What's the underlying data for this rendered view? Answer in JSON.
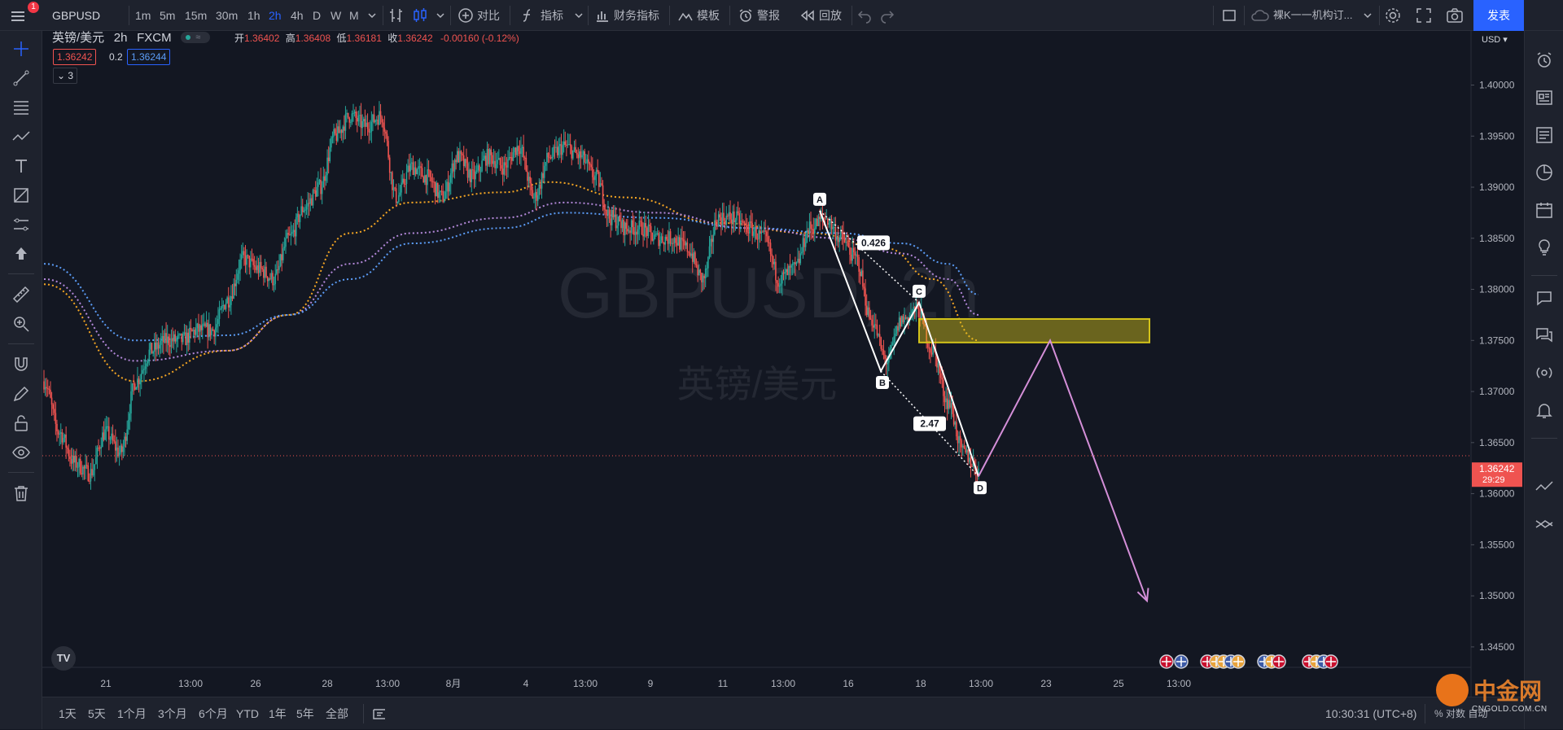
{
  "toolbar": {
    "notification_count": "1",
    "symbol": "GBPUSD",
    "intervals": [
      "1m",
      "5m",
      "15m",
      "30m",
      "1h",
      "2h",
      "4h",
      "D",
      "W",
      "M"
    ],
    "active_interval": "2h",
    "compare_label": "对比",
    "indicators_label": "指标",
    "financials_label": "财务指标",
    "templates_label": "模板",
    "alert_label": "警报",
    "replay_label": "回放",
    "layout_name": "裸K一一机构订...",
    "publish_label": "发表"
  },
  "legend": {
    "title": "英镑/美元",
    "interval": "2h",
    "source": "FXCM",
    "open_label": "开",
    "open": "1.36402",
    "high_label": "高",
    "high": "1.36408",
    "low_label": "低",
    "low": "1.36181",
    "close_label": "收",
    "close": "1.36242",
    "change": "-0.00160 (-0.12%)",
    "bid": "1.36242",
    "spread": "0.2",
    "ask": "1.36244",
    "collapsed_count": "3"
  },
  "watermark": {
    "line1": "GBPUSD, 2h",
    "line2": "英镑/美元"
  },
  "price_axis": {
    "currency": "USD",
    "ticks": [
      "1.40000",
      "1.39500",
      "1.39000",
      "1.38500",
      "1.38000",
      "1.37500",
      "1.37000",
      "1.36500",
      "1.36000",
      "1.35500",
      "1.35000",
      "1.34500"
    ],
    "current_price": "1.36242",
    "countdown": "29:29"
  },
  "time_axis": {
    "ticks": [
      "21",
      "13:00",
      "26",
      "28",
      "13:00",
      "8月",
      "4",
      "13:00",
      "9",
      "11",
      "13:00",
      "16",
      "18",
      "13:00",
      "23",
      "25",
      "13:00"
    ]
  },
  "pattern": {
    "points": [
      "A",
      "B",
      "C",
      "D"
    ],
    "ratio_bc": "0.426",
    "ratio_cd": "2.47"
  },
  "bottom": {
    "ranges": [
      "1天",
      "5天",
      "1个月",
      "3个月",
      "6个月",
      "YTD",
      "1年",
      "5年",
      "全部"
    ],
    "clock": "10:30:31 (UTC+8)",
    "right_labels": "% 对数 自动"
  },
  "brand": {
    "name": "中金网",
    "url": "CNGOLD.COM.CN"
  },
  "colors": {
    "background": "#131722",
    "candle_up": "#26a69a",
    "candle_down": "#ef5350",
    "ma_orange": "#f5a623",
    "ma_purple": "#b388d9",
    "ma_blue": "#5b9cf6",
    "zone": "#d4c31a",
    "projection": "#d48fd8",
    "accent": "#2962ff"
  },
  "chart_data": {
    "type": "candlestick",
    "ylim": [
      1.343,
      1.4045
    ],
    "y_ticks": [
      1.4,
      1.395,
      1.39,
      1.385,
      1.38,
      1.375,
      1.37,
      1.365,
      1.36,
      1.355,
      1.35,
      1.345
    ],
    "x_labels": [
      "21",
      "13:00",
      "26",
      "28",
      "13:00",
      "8月",
      "4",
      "13:00",
      "9",
      "11",
      "13:00",
      "16",
      "18",
      "13:00",
      "23",
      "25",
      "13:00"
    ],
    "close_path": [
      [
        0,
        1.371
      ],
      [
        1,
        1.366
      ],
      [
        2,
        1.363
      ],
      [
        3,
        1.362
      ],
      [
        4,
        1.366
      ],
      [
        5,
        1.364
      ],
      [
        6,
        1.371
      ],
      [
        7,
        1.374
      ],
      [
        8,
        1.375
      ],
      [
        9,
        1.375
      ],
      [
        10,
        1.376
      ],
      [
        11,
        1.376
      ],
      [
        12,
        1.379
      ],
      [
        13,
        1.383
      ],
      [
        14,
        1.382
      ],
      [
        15,
        1.381
      ],
      [
        16,
        1.385
      ],
      [
        17,
        1.388
      ],
      [
        18,
        1.39
      ],
      [
        19,
        1.395
      ],
      [
        20,
        1.397
      ],
      [
        21,
        1.396
      ],
      [
        22,
        1.397
      ],
      [
        23,
        1.389
      ],
      [
        24,
        1.392
      ],
      [
        25,
        1.391
      ],
      [
        26,
        1.389
      ],
      [
        27,
        1.393
      ],
      [
        28,
        1.391
      ],
      [
        29,
        1.393
      ],
      [
        30,
        1.392
      ],
      [
        31,
        1.394
      ],
      [
        32,
        1.389
      ],
      [
        33,
        1.393
      ],
      [
        34,
        1.394
      ],
      [
        35,
        1.393
      ],
      [
        36,
        1.391
      ],
      [
        37,
        1.387
      ],
      [
        38,
        1.386
      ],
      [
        39,
        1.386
      ],
      [
        40,
        1.385
      ],
      [
        41,
        1.385
      ],
      [
        42,
        1.384
      ],
      [
        43,
        1.381
      ],
      [
        44,
        1.387
      ],
      [
        45,
        1.387
      ],
      [
        46,
        1.386
      ],
      [
        47,
        1.385
      ],
      [
        48,
        1.381
      ],
      [
        49,
        1.382
      ],
      [
        50,
        1.386
      ],
      [
        51,
        1.387
      ],
      [
        52,
        1.385
      ],
      [
        53,
        1.383
      ],
      [
        54,
        1.377
      ],
      [
        55,
        1.373
      ],
      [
        56,
        1.377
      ],
      [
        57,
        1.378
      ],
      [
        58,
        1.374
      ],
      [
        59,
        1.369
      ],
      [
        60,
        1.364
      ],
      [
        61,
        1.3624
      ]
    ],
    "ma_series": [
      {
        "color": "orange",
        "values": [
          [
            0,
            1.3805
          ],
          [
            6,
            1.371
          ],
          [
            12,
            1.374
          ],
          [
            16,
            1.3775
          ],
          [
            20,
            1.3855
          ],
          [
            24,
            1.3885
          ],
          [
            30,
            1.3895
          ],
          [
            33,
            1.3905
          ],
          [
            38,
            1.389
          ],
          [
            44,
            1.3865
          ],
          [
            50,
            1.3855
          ],
          [
            55,
            1.384
          ],
          [
            58,
            1.381
          ],
          [
            61,
            1.375
          ]
        ]
      },
      {
        "color": "purple",
        "values": [
          [
            0,
            1.381
          ],
          [
            6,
            1.373
          ],
          [
            12,
            1.374
          ],
          [
            16,
            1.3775
          ],
          [
            20,
            1.3825
          ],
          [
            24,
            1.3855
          ],
          [
            30,
            1.387
          ],
          [
            34,
            1.3885
          ],
          [
            40,
            1.3875
          ],
          [
            46,
            1.386
          ],
          [
            52,
            1.385
          ],
          [
            56,
            1.3835
          ],
          [
            59,
            1.381
          ],
          [
            61,
            1.3775
          ]
        ]
      },
      {
        "color": "blue",
        "values": [
          [
            0,
            1.3825
          ],
          [
            6,
            1.375
          ],
          [
            12,
            1.3755
          ],
          [
            16,
            1.3775
          ],
          [
            20,
            1.381
          ],
          [
            24,
            1.3845
          ],
          [
            30,
            1.386
          ],
          [
            34,
            1.3875
          ],
          [
            40,
            1.387
          ],
          [
            46,
            1.386
          ],
          [
            52,
            1.3855
          ],
          [
            56,
            1.3845
          ],
          [
            59,
            1.3825
          ],
          [
            61,
            1.3795
          ]
        ]
      }
    ],
    "xabcd": {
      "A": {
        "date": "16",
        "price": 1.3877
      },
      "B": {
        "date": "18",
        "price": 1.372
      },
      "C": {
        "date": "18 13:00",
        "price": 1.3787
      },
      "D": {
        "date": "20",
        "price": 1.3617
      }
    },
    "zone": {
      "from": "18 13:00",
      "to": "23",
      "top": 1.3771,
      "bottom": 1.3748
    },
    "projection": [
      {
        "date": "20",
        "price": 1.3617
      },
      {
        "date": "23",
        "price": 1.375
      },
      {
        "date": "25 13:00",
        "price": 1.3495
      }
    ]
  }
}
